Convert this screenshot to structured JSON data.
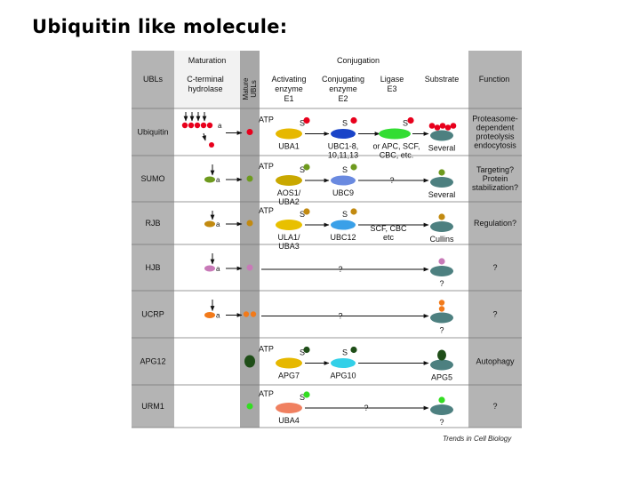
{
  "slide": {
    "title": "Ubiquitin like molecule:"
  },
  "headers": {
    "ubls": "UBLs",
    "maturation": "Maturation",
    "c_terminal_hydrolase": [
      "C-terminal",
      "hydrolase"
    ],
    "mature_ubls": [
      "Mature",
      "UBLs"
    ],
    "conjugation": "Conjugation",
    "activating": [
      "Activating",
      "enzyme",
      "E1"
    ],
    "conjugating": [
      "Conjugating",
      "enzyme",
      "E2"
    ],
    "ligase": [
      "Ligase",
      "E3"
    ],
    "substrate": "Substrate",
    "function": "Function"
  },
  "colors": {
    "ubiquitin": "#e8001c",
    "sumo": "#6e9a1e",
    "rub": "#c28a10",
    "hub": "#c87ab8",
    "ucrp": "#f27a1a",
    "apg12": "#1f4e18",
    "urm1": "#33dd22",
    "header_gray": "#b4b4b4",
    "column_gray": "#a7a7a7",
    "substrate_teal": "#4d8080"
  },
  "rows": [
    {
      "ubl": "Ubiquitin",
      "atp": "ATP",
      "s": "S",
      "e1": [
        "UBA1"
      ],
      "e2": [
        "UBC1-8,",
        "10,11,13"
      ],
      "e3": [
        "or APC, SCF,",
        "CBC, etc."
      ],
      "substrate": "Several",
      "function": [
        "Proteasome-",
        "dependent",
        "proteolysis",
        "endocytosis"
      ]
    },
    {
      "ubl": "SUMO",
      "atp": "ATP",
      "s": "S",
      "e1": [
        "AOS1/",
        "UBA2"
      ],
      "e2": [
        "UBC9"
      ],
      "e3": [
        "?"
      ],
      "substrate": "Several",
      "function": [
        "Targeting?",
        "Protein",
        "stabilization?"
      ]
    },
    {
      "ubl": "RJB",
      "atp": "ATP",
      "s": "S",
      "e1": [
        "ULA1/",
        "UBA3"
      ],
      "e2": [
        "UBC12"
      ],
      "e3": [
        "SCF, CBC",
        "etc"
      ],
      "substrate": "Cullins",
      "function": [
        "Regulation?"
      ]
    },
    {
      "ubl": "HJB",
      "atp": "",
      "s": "",
      "e1": [],
      "e2": [],
      "e3": [
        "?"
      ],
      "substrate": "?",
      "function": [
        "?"
      ]
    },
    {
      "ubl": "UCRP",
      "atp": "",
      "s": "",
      "e1": [],
      "e2": [],
      "e3": [
        "?"
      ],
      "substrate": "?",
      "function": [
        "?"
      ]
    },
    {
      "ubl": "APG12",
      "atp": "ATP",
      "s": "S",
      "e1": [
        "APG7"
      ],
      "e2": [
        "APG10"
      ],
      "e3": [],
      "substrate": "APG5",
      "function": [
        "Autophagy"
      ]
    },
    {
      "ubl": "URM1",
      "atp": "ATP",
      "s": "S",
      "e1": [
        "UBA4"
      ],
      "e2": [],
      "e3": [
        "?"
      ],
      "substrate": "?",
      "function": [
        "?"
      ]
    }
  ],
  "credit": "Trends in Cell Biology"
}
